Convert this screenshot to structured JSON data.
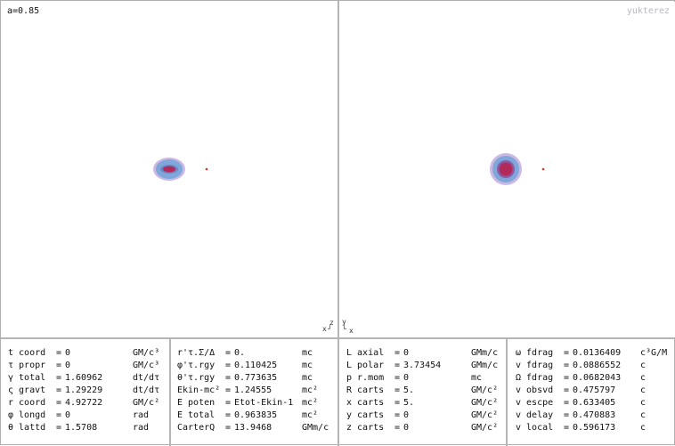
{
  "param_label": "a=0.85",
  "brand": "yukterez",
  "left_axes": {
    "upper": "z",
    "lower": "x"
  },
  "right_axes": {
    "upper": "y",
    "lower": "x"
  },
  "colors": {
    "halo_outer": "#cbb8e6",
    "halo_mid": "#7fa7d9",
    "core": "#b02a5a",
    "marker": "#d43a1a"
  },
  "panels": [
    {
      "rows": [
        {
          "name": "t coord",
          "value": "0",
          "unit": "GM/c³"
        },
        {
          "name": "τ propr",
          "value": "0",
          "unit": "GM/c³"
        },
        {
          "name": "γ total",
          "value": "1.60962",
          "unit": "dt/dτ"
        },
        {
          "name": "ς gravt",
          "value": "1.29229",
          "unit": "dt/dτ"
        },
        {
          "name": "r coord",
          "value": "4.92722",
          "unit": "GM/c²"
        },
        {
          "name": "φ longd",
          "value": "0",
          "unit": "rad"
        },
        {
          "name": "θ lattd",
          "value": "1.5708",
          "unit": "rad"
        }
      ]
    },
    {
      "rows": [
        {
          "name": "r'τ.Σ/Δ",
          "value": "0.",
          "unit": "mc"
        },
        {
          "name": "φ'τ.rgy",
          "value": "0.110425",
          "unit": "mc"
        },
        {
          "name": "θ'τ.rgy",
          "value": "0.773635",
          "unit": "mc"
        },
        {
          "name": "Ekin-mc²",
          "value": "1.24555",
          "unit": "mc²"
        },
        {
          "name": "E poten",
          "value": "Etot-Ekin-1",
          "unit": "mc²"
        },
        {
          "name": "E total",
          "value": "0.963835",
          "unit": "mc²"
        },
        {
          "name": "CarterQ",
          "value": "13.9468",
          "unit": "GMm/c"
        }
      ]
    },
    {
      "rows": [
        {
          "name": "L axial",
          "value": "0",
          "unit": "GMm/c"
        },
        {
          "name": "L polar",
          "value": "3.73454",
          "unit": "GMm/c"
        },
        {
          "name": "p r.mom",
          "value": "0",
          "unit": "mc"
        },
        {
          "name": "R carts",
          "value": "5.",
          "unit": "GM/c²"
        },
        {
          "name": "x carts",
          "value": "5.",
          "unit": "GM/c²"
        },
        {
          "name": "y carts",
          "value": "0",
          "unit": "GM/c²"
        },
        {
          "name": "z carts",
          "value": "0",
          "unit": "GM/c²"
        }
      ]
    },
    {
      "rows": [
        {
          "name": "ω fdrag",
          "value": "0.0136409",
          "unit": "c³G/M"
        },
        {
          "name": "v fdrag",
          "value": "0.0886552",
          "unit": "c"
        },
        {
          "name": "Ω fdrag",
          "value": "0.0682043",
          "unit": "c"
        },
        {
          "name": "v obsvd",
          "value": "0.475797",
          "unit": "c"
        },
        {
          "name": "v escpe",
          "value": "0.633405",
          "unit": "c"
        },
        {
          "name": "v delay",
          "value": "0.470883",
          "unit": "c"
        },
        {
          "name": "v local",
          "value": "0.596173",
          "unit": "c"
        }
      ]
    }
  ]
}
